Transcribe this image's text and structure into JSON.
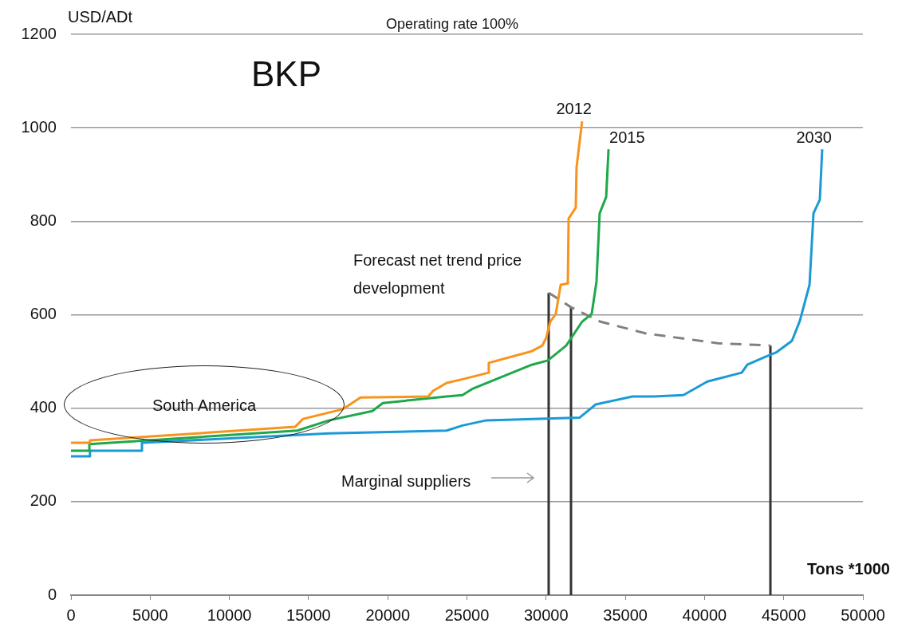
{
  "chart_data": {
    "type": "line",
    "title": "BKP",
    "subtitle": "Operating rate 100%",
    "xlabel": "Tons *1000",
    "ylabel": "USD/ADt",
    "annotations": [
      "Forecast net trend price development",
      "South America",
      "Marginal suppliers"
    ],
    "series": [
      {
        "name": "2012",
        "color": "#f7941d",
        "x": [
          0,
          1200,
          1200,
          14150,
          14650,
          17170,
          18280,
          22560,
          22860,
          23720,
          24720,
          26380,
          26380,
          29100,
          29760,
          30010,
          30260,
          30610,
          30920,
          31370,
          31420,
          31870,
          31920,
          32270
        ],
        "values": [
          326,
          326,
          331,
          360,
          377,
          398,
          423,
          425,
          437,
          454,
          462,
          476,
          497,
          522,
          534,
          551,
          585,
          602,
          664,
          667,
          806,
          829,
          915,
          1014
        ]
      },
      {
        "name": "2015",
        "color": "#1fa84a",
        "x": [
          0,
          1160,
          1160,
          14300,
          16300,
          19030,
          19690,
          23720,
          24720,
          25380,
          29100,
          30110,
          31270,
          32270,
          32880,
          33180,
          33380,
          33790,
          33940
        ],
        "values": [
          309,
          309,
          323,
          352,
          374,
          394,
          411,
          425,
          428,
          442,
          493,
          502,
          534,
          585,
          602,
          671,
          817,
          852,
          954
        ]
      },
      {
        "name": "2030",
        "color": "#1b9ad6",
        "x": [
          0,
          1200,
          1200,
          4480,
          4480,
          16300,
          23720,
          24720,
          26230,
          32120,
          33130,
          35450,
          36800,
          38670,
          40180,
          42350,
          42700,
          43860,
          44510,
          45520,
          46020,
          46630,
          46880,
          47280,
          47430
        ],
        "values": [
          297,
          297,
          309,
          309,
          326,
          346,
          352,
          363,
          374,
          380,
          408,
          425,
          425,
          428,
          457,
          476,
          493,
          510,
          519,
          544,
          587,
          664,
          817,
          846,
          954
        ]
      },
      {
        "color": "#808080",
        "line_style": "dashed",
        "x": [
          30160,
          31570,
          33430,
          36300,
          40830,
          44160
        ],
        "values": [
          647,
          616,
          585,
          560,
          539,
          534
        ]
      },
      {
        "color": "#333333",
        "x": [
          30160,
          30160
        ],
        "values": [
          0,
          647
        ]
      },
      {
        "color": "#333333",
        "x": [
          31570,
          31570
        ],
        "values": [
          0,
          616
        ]
      },
      {
        "color": "#333333",
        "x": [
          44160,
          44160
        ],
        "values": [
          0,
          534
        ]
      }
    ],
    "xlim": [
      0,
      50000
    ],
    "xticks": [
      0,
      5000,
      10000,
      15000,
      20000,
      25000,
      30000,
      35000,
      40000,
      45000,
      50000
    ],
    "ylim": [
      0,
      1200
    ],
    "yticks": [
      0,
      200,
      400,
      600,
      800,
      1000,
      1200
    ],
    "grid": "y",
    "legend": false,
    "marker": "none"
  }
}
